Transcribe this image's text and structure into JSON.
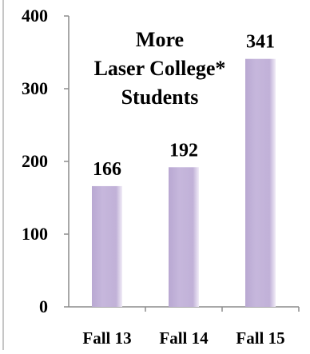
{
  "chart_data": {
    "type": "bar",
    "title": "More Laser College* Students",
    "title_lines": [
      "More",
      "Laser College*",
      "Students"
    ],
    "categories": [
      "Fall 13",
      "Fall 14",
      "Fall 15"
    ],
    "values": [
      166,
      192,
      341
    ],
    "data_labels": [
      "166",
      "192",
      "341"
    ],
    "y_ticks": [
      0,
      100,
      200,
      300,
      400
    ],
    "ylim": [
      0,
      400
    ],
    "xlabel": "",
    "ylabel": "",
    "grid": false,
    "legend": "none",
    "colors": {
      "bar": "#c4b4da",
      "bar_edge": "#e6ddf0",
      "axis": "#8c8c8c",
      "text": "#000000"
    }
  }
}
